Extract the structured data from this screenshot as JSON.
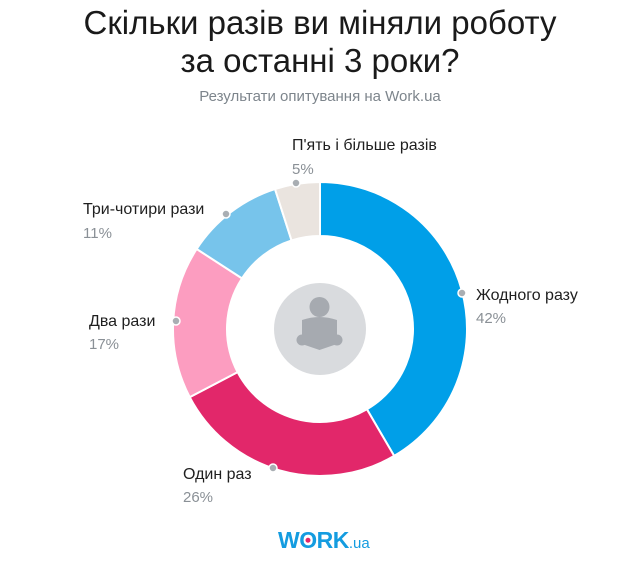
{
  "header": {
    "title_line1": "Скільки разів ви міняли роботу",
    "title_line2": "за останні 3 роки?",
    "subtitle": "Результати опитування на Work.ua"
  },
  "logo": {
    "main_prefix": "W",
    "main_o": "O",
    "main_suffix": "RK",
    "tld": ".ua"
  },
  "center_icon": "person-reading-book-icon",
  "colors": {
    "accent": "#009FE8",
    "label_dot": "#A9AEB3",
    "center_circle": "#D9DBDE",
    "center_icon": "#A6AAB0"
  },
  "chart_data": {
    "type": "pie",
    "subtype": "donut",
    "title": "Скільки разів ви міняли роботу за останні 3 роки?",
    "subtitle": "Результати опитування на Work.ua",
    "categories": [
      "Жодного разу",
      "Один раз",
      "Два рази",
      "Три-чотири рази",
      "П'ять і більше разів"
    ],
    "values": [
      42,
      26,
      17,
      11,
      5
    ],
    "labels": [
      "42%",
      "26%",
      "17%",
      "11%",
      "5%"
    ],
    "colors": [
      "#009FE8",
      "#E2276A",
      "#FC9DC0",
      "#77C4EB",
      "#EAE4DF"
    ],
    "unit": "%",
    "start_angle": "top (12 o'clock), clockwise",
    "legend": "none (direct labels)"
  }
}
